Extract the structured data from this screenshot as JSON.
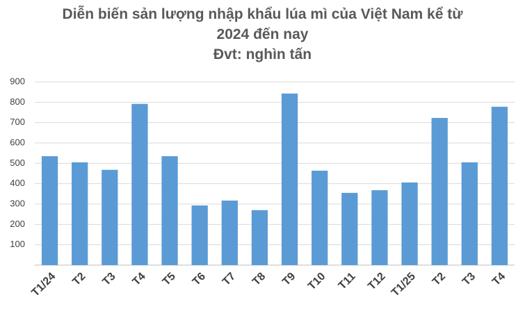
{
  "chart_data": {
    "type": "bar",
    "title": "Diễn biến sản lượng nhập khẩu lúa mì của Việt Nam kể từ 2024 đến nay",
    "subtitle": "Đvt: nghìn tấn",
    "categories": [
      "T1/24",
      "T2",
      "T3",
      "T4",
      "T5",
      "T6",
      "T7",
      "T8",
      "T9",
      "T10",
      "T11",
      "T12",
      "T1/25",
      "T2",
      "T3",
      "T4"
    ],
    "values": [
      535,
      505,
      468,
      792,
      535,
      293,
      317,
      270,
      843,
      464,
      355,
      368,
      406,
      723,
      505,
      778
    ],
    "color": "#5b9bd5",
    "ylim": [
      0,
      900
    ],
    "yticks": [
      100,
      200,
      300,
      400,
      500,
      600,
      700,
      800,
      900
    ],
    "grid": true
  }
}
